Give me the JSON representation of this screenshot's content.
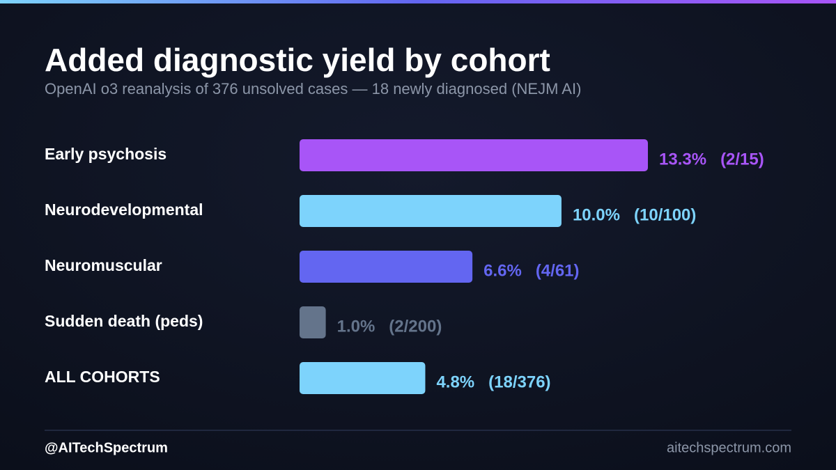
{
  "chart_data": {
    "type": "bar",
    "orientation": "horizontal",
    "title": "Added diagnostic yield by cohort",
    "subtitle": "OpenAI o3 reanalysis of 376 unsolved cases — 18 newly diagnosed (NEJM AI)",
    "categories": [
      "Early psychosis",
      "Neurodevelopmental",
      "Neuromuscular",
      "Sudden death (peds)",
      "ALL COHORTS"
    ],
    "values": [
      13.3,
      10.0,
      6.6,
      1.0,
      4.8
    ],
    "value_labels": [
      "13.3%",
      "10.0%",
      "6.6%",
      "1.0%",
      "4.8%"
    ],
    "counts": [
      "(2/15)",
      "(10/100)",
      "(4/61)",
      "(2/200)",
      "(18/376)"
    ],
    "colors": [
      "#a855f7",
      "#7dd3fc",
      "#6366f1",
      "#64748b",
      "#7dd3fc"
    ]
  },
  "footer": {
    "handle": "@AITechSpectrum",
    "site": "aitechspectrum.com"
  }
}
